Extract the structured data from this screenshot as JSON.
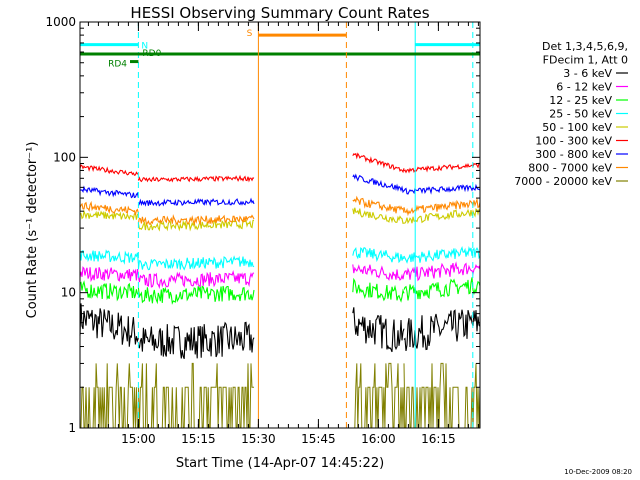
{
  "chart_data": {
    "type": "line",
    "title": "HESSI Observing Summary Count Rates",
    "xlabel": "Start Time (14-Apr-07 14:45:22)",
    "ylabel": "Count Rate (s⁻¹ detector⁻¹)",
    "y_scale": "log",
    "ylim": [
      1,
      1000
    ],
    "x_unit": "minutes after 14:45:22",
    "xlim": [
      0,
      100
    ],
    "x_tick_labels": [
      "15:00",
      "15:15",
      "15:30",
      "15:45",
      "16:00",
      "16:15"
    ],
    "x_tick_values": [
      14.6,
      29.6,
      44.6,
      59.6,
      74.6,
      89.6
    ],
    "y_tick_labels": [
      "1",
      "10",
      "100",
      "1000"
    ],
    "y_tick_values": [
      1,
      10,
      100,
      1000
    ],
    "grid": false,
    "legend_position": "right",
    "legend_header": [
      "Det 1,3,4,5,6,9,",
      "FDecim 1, Att 0"
    ],
    "data_gap": [
      44.6,
      68.2
    ],
    "series": [
      {
        "name": "3 - 6 keV",
        "color": "#000000",
        "segments": [
          {
            "x": [
              0,
              14.6
            ],
            "y": [
              6.5,
              5.0
            ]
          },
          {
            "x": [
              14.6,
              43.5
            ],
            "y": [
              4.3,
              4.5
            ]
          },
          {
            "x": [
              68.2,
              81
            ],
            "y": [
              6.0,
              4.6
            ]
          },
          {
            "x": [
              81,
              100
            ],
            "y": [
              4.8,
              6.0
            ]
          }
        ]
      },
      {
        "name": "6 - 12 keV",
        "color": "#ff00ff",
        "segments": [
          {
            "x": [
              0,
              14.6
            ],
            "y": [
              14.0,
              13.5
            ]
          },
          {
            "x": [
              14.6,
              43.5
            ],
            "y": [
              12.2,
              12.8
            ]
          },
          {
            "x": [
              68.2,
              81
            ],
            "y": [
              15.0,
              13.5
            ]
          },
          {
            "x": [
              81,
              100
            ],
            "y": [
              13.5,
              15.5
            ]
          }
        ]
      },
      {
        "name": "12 - 25 keV",
        "color": "#00ff00",
        "segments": [
          {
            "x": [
              0,
              14.6
            ],
            "y": [
              10.5,
              10.0
            ]
          },
          {
            "x": [
              14.6,
              43.5
            ],
            "y": [
              9.5,
              10.0
            ]
          },
          {
            "x": [
              68.2,
              81
            ],
            "y": [
              11.0,
              9.5
            ]
          },
          {
            "x": [
              81,
              100
            ],
            "y": [
              10.0,
              11.5
            ]
          }
        ]
      },
      {
        "name": "25 - 50 keV",
        "color": "#00ffff",
        "segments": [
          {
            "x": [
              0,
              14.6
            ],
            "y": [
              19.0,
              18.0
            ]
          },
          {
            "x": [
              14.6,
              43.5
            ],
            "y": [
              16.0,
              17.0
            ]
          },
          {
            "x": [
              68.2,
              81
            ],
            "y": [
              20.0,
              18.0
            ]
          },
          {
            "x": [
              81,
              100
            ],
            "y": [
              18.0,
              20.0
            ]
          }
        ]
      },
      {
        "name": "50 - 100 keV",
        "color": "#cccc00",
        "segments": [
          {
            "x": [
              0,
              14.6
            ],
            "y": [
              38.0,
              36.0
            ]
          },
          {
            "x": [
              14.6,
              43.5
            ],
            "y": [
              31.0,
              32.0
            ]
          },
          {
            "x": [
              68.2,
              81
            ],
            "y": [
              40.0,
              34.0
            ]
          },
          {
            "x": [
              81,
              100
            ],
            "y": [
              34.0,
              40.0
            ]
          }
        ]
      },
      {
        "name": "100 - 300 keV",
        "color": "#ff0000",
        "segments": [
          {
            "x": [
              0,
              14.6
            ],
            "y": [
              85.0,
              75.0
            ]
          },
          {
            "x": [
              14.6,
              43.5
            ],
            "y": [
              68.0,
              70.0
            ]
          },
          {
            "x": [
              68.2,
              81
            ],
            "y": [
              105.0,
              80.0
            ]
          },
          {
            "x": [
              81,
              100
            ],
            "y": [
              80.0,
              88.0
            ]
          }
        ]
      },
      {
        "name": "300 - 800 keV",
        "color": "#0000ff",
        "segments": [
          {
            "x": [
              0,
              14.6
            ],
            "y": [
              58.0,
              52.0
            ]
          },
          {
            "x": [
              14.6,
              43.5
            ],
            "y": [
              46.0,
              47.0
            ]
          },
          {
            "x": [
              68.2,
              81
            ],
            "y": [
              72.0,
              58.0
            ]
          },
          {
            "x": [
              81,
              100
            ],
            "y": [
              56.0,
              60.0
            ]
          }
        ]
      },
      {
        "name": "800 - 7000 keV",
        "color": "#ff8800",
        "segments": [
          {
            "x": [
              0,
              14.6
            ],
            "y": [
              44.0,
              40.0
            ]
          },
          {
            "x": [
              14.6,
              43.5
            ],
            "y": [
              34.0,
              35.0
            ]
          },
          {
            "x": [
              68.2,
              81
            ],
            "y": [
              48.0,
              40.0
            ]
          },
          {
            "x": [
              81,
              100
            ],
            "y": [
              40.0,
              46.0
            ]
          }
        ]
      },
      {
        "name": "7000 - 20000 keV",
        "color": "#808000",
        "segments": [
          {
            "x": [
              0,
              14.6
            ],
            "y": [
              2.0,
              2.0
            ]
          },
          {
            "x": [
              14.6,
              43.5
            ],
            "y": [
              2.0,
              2.0
            ]
          },
          {
            "x": [
              68.2,
              81
            ],
            "y": [
              2.0,
              2.0
            ]
          },
          {
            "x": [
              81,
              100
            ],
            "y": [
              2.0,
              2.0
            ]
          }
        ]
      }
    ],
    "annotations": [
      {
        "text": "N",
        "color": "#00ffff",
        "x_start": 0,
        "x_end": 14.6,
        "y": 680,
        "extra_x_start": 83.8,
        "extra_x_end": 100,
        "vlines": [
          0,
          14.6,
          83.8,
          98.2
        ]
      },
      {
        "text": "RD0",
        "color": "#008000",
        "x_start": 0,
        "x_end": 100,
        "y": 580
      },
      {
        "text": "RD4",
        "color": "#008000",
        "x_start": 12.5,
        "x_end": 14.6,
        "y": 510
      },
      {
        "text": "S",
        "color": "#ff8800",
        "x_start": 44.6,
        "x_end": 66.6,
        "y": 800,
        "vlines": [
          44.6,
          66.6
        ]
      }
    ],
    "footer_timestamp": "10-Dec-2009 08:20"
  }
}
